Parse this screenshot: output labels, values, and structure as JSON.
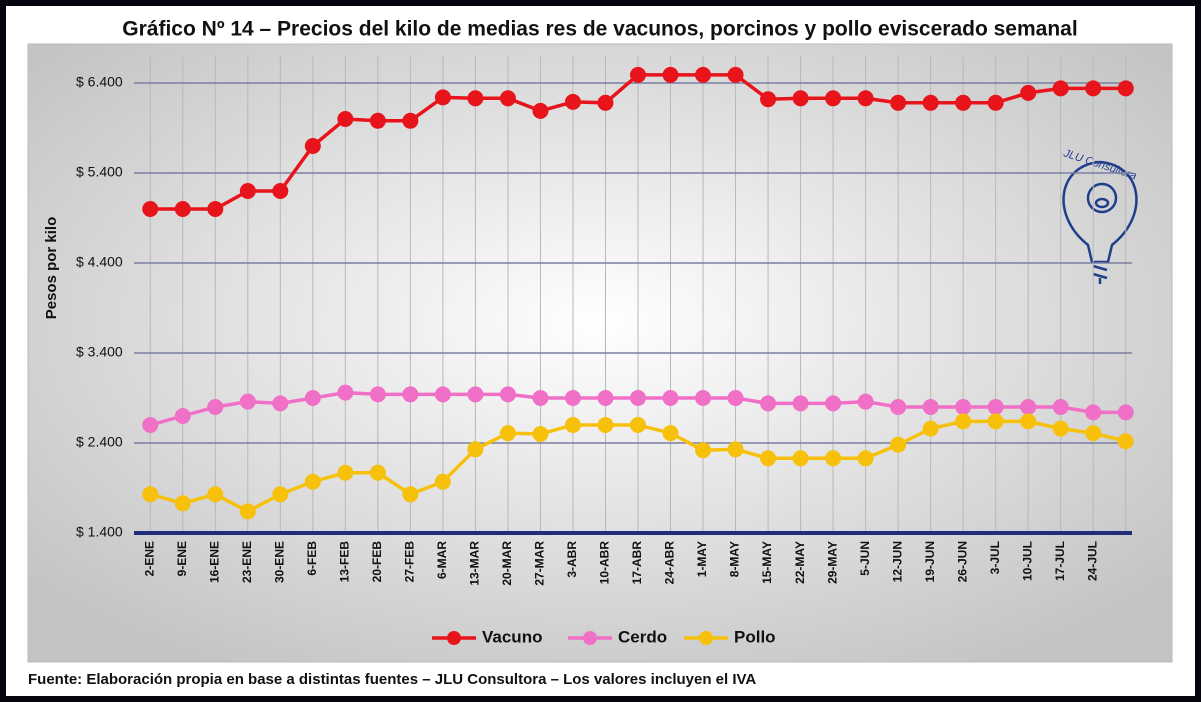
{
  "chart_data": {
    "type": "line",
    "title": "Gráfico Nº 14 – Precios del kilo de medias res de vacunos, porcinos y pollo eviscerado semanal",
    "y_label": "Pesos por kilo",
    "source": "Fuente: Elaboración propia en base a distintas fuentes – JLU Consultora – Los valores incluyen el IVA",
    "logo_text": "JLU Consultora",
    "categories": [
      "2-ENE",
      "9-ENE",
      "16-ENE",
      "23-ENE",
      "30-ENE",
      "6-FEB",
      "13-FEB",
      "20-FEB",
      "27-FEB",
      "6-MAR",
      "13-MAR",
      "20-MAR",
      "27-MAR",
      "3-ABR",
      "10-ABR",
      "17-ABR",
      "24-ABR",
      "1-MAY",
      "8-MAY",
      "15-MAY",
      "22-MAY",
      "29-MAY",
      "5-JUN",
      "12-JUN",
      "19-JUN",
      "26-JUN",
      "3-JUL",
      "10-JUL",
      "17-JUL",
      "24-JUL",
      null
    ],
    "series": [
      {
        "name": "Vacuno",
        "color": "#e8141b",
        "values": [
          5000,
          5000,
          5000,
          5200,
          5200,
          5700,
          6000,
          5980,
          5980,
          6240,
          6230,
          6230,
          6090,
          6190,
          6180,
          6490,
          6490,
          6490,
          6490,
          6220,
          6230,
          6230,
          6230,
          6180,
          6180,
          6180,
          6180,
          6290,
          6340,
          6340,
          6340
        ]
      },
      {
        "name": "Cerdo",
        "color": "#f070c8",
        "values": [
          2600,
          2700,
          2800,
          2860,
          2840,
          2900,
          2960,
          2940,
          2940,
          2940,
          2940,
          2940,
          2900,
          2900,
          2900,
          2900,
          2900,
          2900,
          2900,
          2840,
          2840,
          2840,
          2860,
          2800,
          2800,
          2800,
          2800,
          2800,
          2800,
          2740,
          2740
        ]
      },
      {
        "name": "Pollo",
        "color": "#f7c00a",
        "values": [
          1830,
          1730,
          1830,
          1640,
          1830,
          1970,
          2070,
          2070,
          1830,
          1970,
          2330,
          2510,
          2500,
          2600,
          2600,
          2600,
          2510,
          2320,
          2330,
          2230,
          2230,
          2230,
          2230,
          2380,
          2560,
          2640,
          2640,
          2640,
          2560,
          2510,
          2420
        ]
      }
    ],
    "ylim": [
      1400,
      6700
    ],
    "yticks": [
      {
        "value": 1400,
        "label": "$ 1.400"
      },
      {
        "value": 2400,
        "label": "$ 2.400"
      },
      {
        "value": 3400,
        "label": "$ 3.400"
      },
      {
        "value": 4400,
        "label": "$ 4.400"
      },
      {
        "value": 5400,
        "label": "$ 5.400"
      },
      {
        "value": 6400,
        "label": "$ 6.400"
      }
    ],
    "grid": true,
    "legend": "bottom"
  }
}
